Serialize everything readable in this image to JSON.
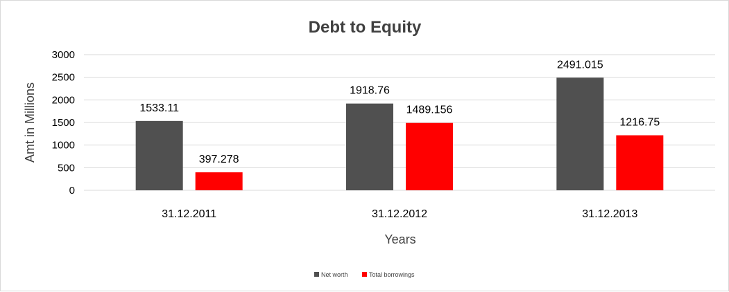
{
  "chart_data": {
    "type": "bar",
    "title": "Debt to Equity",
    "xlabel": "Years",
    "ylabel": "Amt in Millions",
    "categories": [
      "31.12.2011",
      "31.12.2012",
      "31.12.2013"
    ],
    "series": [
      {
        "name": "Net worth",
        "values": [
          1533.11,
          1918.76,
          2491.015
        ],
        "labels": [
          "1533.11",
          "1918.76",
          "2491.015"
        ],
        "color": "#505050"
      },
      {
        "name": "Total borrowings",
        "values": [
          397.278,
          1489.156,
          1216.75
        ],
        "labels": [
          "397.278",
          "1489.156",
          "1216.75"
        ],
        "color": "#ff0000"
      }
    ],
    "ylim": [
      0,
      3000
    ],
    "yticks": [
      "0",
      "500",
      "1000",
      "1500",
      "2000",
      "2500",
      "3000"
    ],
    "grid": true,
    "legend": "bottom"
  }
}
